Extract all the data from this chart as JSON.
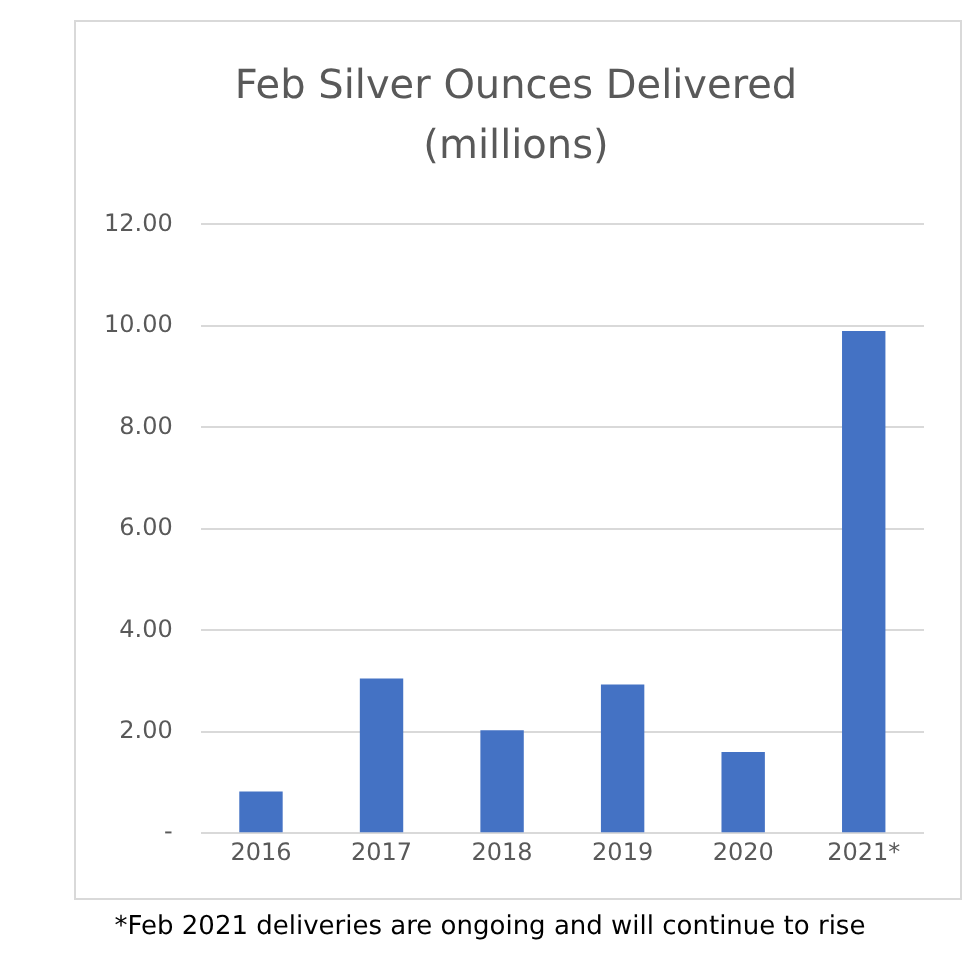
{
  "chart_data": {
    "type": "bar",
    "title": "Feb Silver Ounces Delivered (millions)",
    "categories": [
      "2016",
      "2017",
      "2018",
      "2019",
      "2020",
      "2021*"
    ],
    "values": [
      0.82,
      3.05,
      2.03,
      2.93,
      1.6,
      9.9
    ],
    "color": "#4472c4",
    "ylim": [
      0,
      12
    ],
    "yticks": [
      {
        "value": 0,
        "label": "-"
      },
      {
        "value": 2,
        "label": "2.00"
      },
      {
        "value": 4,
        "label": "4.00"
      },
      {
        "value": 6,
        "label": "6.00"
      },
      {
        "value": 8,
        "label": "8.00"
      },
      {
        "value": 10,
        "label": "10.00"
      },
      {
        "value": 12,
        "label": "12.00"
      }
    ],
    "grid": "y",
    "legend": false,
    "annotations": [
      "*Feb 2021 deliveries are ongoing and will continue to rise"
    ]
  }
}
